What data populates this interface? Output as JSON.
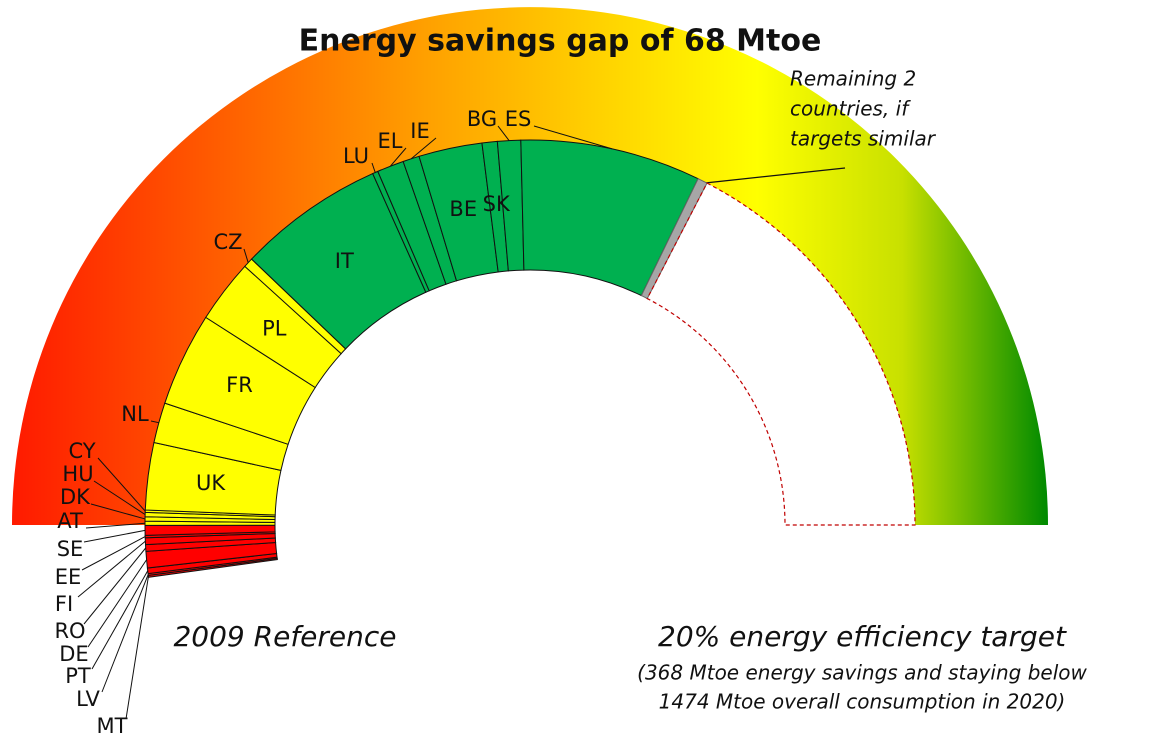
{
  "chart_data": {
    "type": "half-donut",
    "title": "Energy savings gap of 68 Mtoe",
    "segments": [
      {
        "name": "MT",
        "value": 0.3,
        "color": "#ff0000"
      },
      {
        "name": "LV",
        "value": 0.3,
        "color": "#ff0000"
      },
      {
        "name": "PT",
        "value": 0.9,
        "color": "#ff0000"
      },
      {
        "name": "DE",
        "value": 2.7,
        "color": "#ff0000"
      },
      {
        "name": "RO",
        "value": 1.1,
        "color": "#ff0000"
      },
      {
        "name": "FI",
        "value": 1.1,
        "color": "#ff0000"
      },
      {
        "name": "EE",
        "value": 0.4,
        "color": "#ff0000"
      },
      {
        "name": "SE",
        "value": 1.6,
        "color": "#ff0000"
      },
      {
        "name": "AT",
        "value": 0.7,
        "color": "#ffff00"
      },
      {
        "name": "DK",
        "value": 0.7,
        "color": "#ffff00"
      },
      {
        "name": "HU",
        "value": 0.7,
        "color": "#ffff00"
      },
      {
        "name": "CY",
        "value": 0.4,
        "color": "#ffff00"
      },
      {
        "name": "UK",
        "value": 11,
        "color": "#ffff00"
      },
      {
        "name": "NL",
        "value": 6.6,
        "color": "#ffff00"
      },
      {
        "name": "FR",
        "value": 15.4,
        "color": "#ffff00"
      },
      {
        "name": "PL",
        "value": 10.4,
        "color": "#ffff00"
      },
      {
        "name": "CZ",
        "value": 1.6,
        "color": "#ffff00"
      },
      {
        "name": "IT",
        "value": 24.1,
        "color": "#00b050"
      },
      {
        "name": "LU",
        "value": 0.9,
        "color": "#00b050"
      },
      {
        "name": "EL",
        "value": 4.4,
        "color": "#00b050"
      },
      {
        "name": "IE",
        "value": 2.7,
        "color": "#00b050"
      },
      {
        "name": "BE",
        "value": 10.4,
        "color": "#00b050"
      },
      {
        "name": "SK",
        "value": 2.5,
        "color": "#00b050"
      },
      {
        "name": "BG",
        "value": 3.8,
        "color": "#00b050"
      },
      {
        "name": "ES",
        "value": 29.6,
        "color": "#00b050"
      }
    ],
    "remaining": {
      "label": [
        "Remaining 2",
        "countries, if",
        "targets similar"
      ],
      "value": 1.6,
      "color": "#a6a6a6"
    },
    "gap": {
      "value": 68,
      "color": "#c00000"
    },
    "left_label": "2009 Reference",
    "right_label": "20% energy efficiency target",
    "right_note": [
      "(368 Mtoe energy savings and staying below",
      "1474 Mtoe overall consumption in 2020)"
    ]
  }
}
